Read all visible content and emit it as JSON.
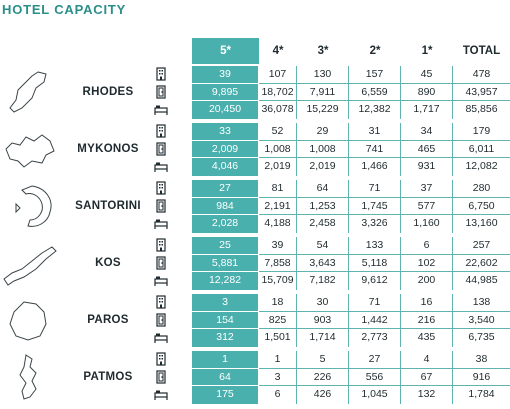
{
  "title": "HOTEL CAPACITY",
  "columns": [
    "5*",
    "4*",
    "3*",
    "2*",
    "1*",
    "TOTAL"
  ],
  "row_icons": [
    "hotels-icon",
    "rooms-icon",
    "beds-icon"
  ],
  "colors": {
    "accent": "#4ab0ad",
    "title": "#2a8f8a",
    "border": "#5fb3b0"
  },
  "islands": [
    {
      "name": "RHODES",
      "rows": [
        [
          "39",
          "107",
          "130",
          "157",
          "45",
          "478"
        ],
        [
          "9,895",
          "18,702",
          "7,911",
          "6,559",
          "890",
          "43,957"
        ],
        [
          "20,450",
          "36,078",
          "15,229",
          "12,382",
          "1,717",
          "85,856"
        ]
      ]
    },
    {
      "name": "MYKONOS",
      "rows": [
        [
          "33",
          "52",
          "29",
          "31",
          "34",
          "179"
        ],
        [
          "2,009",
          "1,008",
          "1,008",
          "741",
          "465",
          "6,011"
        ],
        [
          "4,046",
          "2,019",
          "2,019",
          "1,466",
          "931",
          "12,082"
        ]
      ]
    },
    {
      "name": "SANTORINI",
      "rows": [
        [
          "27",
          "81",
          "64",
          "71",
          "37",
          "280"
        ],
        [
          "984",
          "2,191",
          "1,253",
          "1,745",
          "577",
          "6,750"
        ],
        [
          "2,028",
          "4,188",
          "2,458",
          "3,326",
          "1,160",
          "13,160"
        ]
      ]
    },
    {
      "name": "KOS",
      "rows": [
        [
          "25",
          "39",
          "54",
          "133",
          "6",
          "257"
        ],
        [
          "5,881",
          "7,858",
          "3,643",
          "5,118",
          "102",
          "22,602"
        ],
        [
          "12,282",
          "15,709",
          "7,182",
          "9,612",
          "200",
          "44,985"
        ]
      ]
    },
    {
      "name": "PAROS",
      "rows": [
        [
          "3",
          "18",
          "30",
          "71",
          "16",
          "138"
        ],
        [
          "154",
          "825",
          "903",
          "1,442",
          "216",
          "3,540"
        ],
        [
          "312",
          "1,501",
          "1,714",
          "2,773",
          "435",
          "6,735"
        ]
      ]
    },
    {
      "name": "PATMOS",
      "rows": [
        [
          "1",
          "1",
          "5",
          "27",
          "4",
          "38"
        ],
        [
          "64",
          "3",
          "226",
          "556",
          "67",
          "916"
        ],
        [
          "175",
          "6",
          "426",
          "1,045",
          "132",
          "1,784"
        ]
      ]
    }
  ]
}
